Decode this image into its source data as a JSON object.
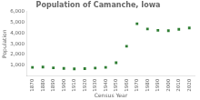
{
  "chart_data": {
    "type": "scatter",
    "title": "Population of Camanche, Iowa",
    "xlabel": "Census Year",
    "ylabel": "Population",
    "x": [
      1870,
      1880,
      1890,
      1900,
      1910,
      1920,
      1930,
      1940,
      1950,
      1960,
      1970,
      1980,
      1990,
      2000,
      2010,
      2020
    ],
    "values": [
      820,
      850,
      780,
      720,
      680,
      700,
      750,
      820,
      1250,
      2778,
      4866,
      4370,
      4253,
      4215,
      4342,
      4469
    ],
    "color": "#2e7d32",
    "marker": "square",
    "xlim": [
      1865,
      2025
    ],
    "xticks": [
      1870,
      1880,
      1890,
      1900,
      1910,
      1920,
      1930,
      1940,
      1950,
      1960,
      1970,
      1980,
      1990,
      2000,
      2010,
      2020
    ],
    "ylim": [
      0,
      6000
    ],
    "yticks": [
      {
        "value": 1000,
        "label": "1,000"
      },
      {
        "value": 2000,
        "label": "2,000"
      },
      {
        "value": 3000,
        "label": "3,000"
      },
      {
        "value": 4000,
        "label": "4,000"
      },
      {
        "value": 5000,
        "label": "5,000"
      },
      {
        "value": 6000,
        "label": "6,000"
      }
    ],
    "grid": false
  }
}
